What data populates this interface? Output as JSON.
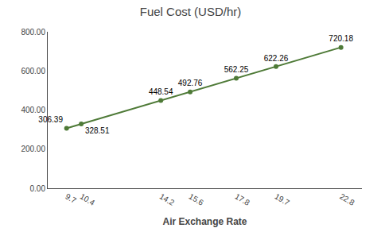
{
  "chart_data": {
    "type": "line",
    "title": "Fuel Cost (USD/hr)",
    "xlabel": "Air Exchange Rate",
    "x": [
      9.7,
      10.4,
      14.2,
      15.6,
      17.8,
      19.7,
      22.8
    ],
    "values": [
      306.39,
      328.51,
      448.54,
      492.76,
      562.25,
      622.26,
      720.18
    ],
    "color": "#4E7A37",
    "marker": "circle",
    "data_labels": true,
    "xlim": [
      8.8,
      23.8
    ],
    "xticks": [
      9.7,
      10.4,
      14.2,
      15.6,
      17.8,
      19.7,
      22.8
    ],
    "ylim": [
      0,
      800
    ],
    "yticks": [
      {
        "value": 0,
        "label": "0.00"
      },
      {
        "value": 200,
        "label": "200.00"
      },
      {
        "value": 400,
        "label": "400.00"
      },
      {
        "value": 600,
        "label": "600.00"
      },
      {
        "value": 800,
        "label": "800.00"
      }
    ],
    "grid": false
  }
}
